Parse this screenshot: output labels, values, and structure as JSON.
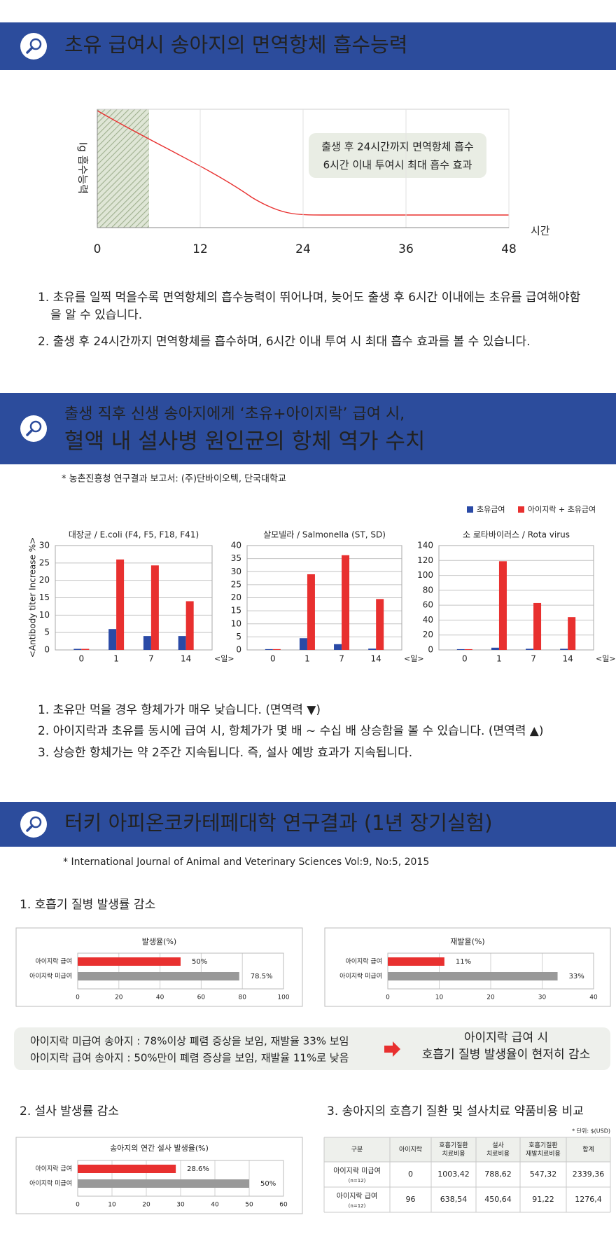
{
  "section1": {
    "title": "초유 급여시 송아지의 면역항체 흡수능력",
    "notes": [
      "1. 초유를 일찍 먹을수록 면역항체의 흡수능력이 뛰어나며, 늦어도 출생 후 6시간 이내에는 초유를 급여해야함을 알 수 있습니다.",
      "2. 출생 후 24시간까지 면역항체를 흡수하며, 6시간 이내  투여 시 최대 흡수 효과를 볼 수 있습니다."
    ]
  },
  "section2": {
    "title_lines": [
      "출생 직후 신생 송아지에게 ‘초유+아이지락’ 급여 시,",
      "혈액 내 설사병 원인균의 항체 역가 수치"
    ],
    "source": "* 농촌진흥청 연구결과 보고서: (주)단바이오텍, 단국대학교",
    "legend": [
      {
        "name": "초유급여",
        "color": "#2a4aa6"
      },
      {
        "name": "아이지락 + 초유급여",
        "color": "#e8302f"
      }
    ],
    "y_label": "<Antibody titer Increase %>",
    "x_unit": "<일>",
    "notes": [
      "1. 초유만 먹을 경우 항체가가 매우 낮습니다. (면역력 ▼)",
      "2. 아이지락과 초유를 동시에 급여 시, 항체가가 몇 배 ~ 수십 배 상승함을 볼 수 있습니다. (면역력 ▲)",
      "3. 상승한 항체가는 약 2주간 지속됩니다. 즉, 설사 예방 효과가 지속됩니다."
    ]
  },
  "section3": {
    "title": "터키 아피온코카테페대학 연구결과 (1년 장기실험)",
    "source": "* International Journal of Animal and Veterinary Sciences Vol:9, No:5, 2015",
    "heading1": "1. 호흡기 질병 발생률 감소",
    "summary_left": [
      "아이지락 미급여 송아지 : 78%이상 폐렴 증상을 보임, 재발율 33% 보임",
      "아이지락 급여 송아지 : 50%만이 폐렴 증상을 보임, 재발율 11%로 낮음"
    ],
    "summary_right": [
      "아이지락 급여 시",
      "호흡기 질병 발생율이 현저히 감소"
    ],
    "heading2": "2. 설사 발생률 감소",
    "heading3": "3. 송아지의 호흡기 질환 및 설사치료 약품비용 비교",
    "cost_table": {
      "unit": "* 단위: $(USD)",
      "header": [
        [
          "구분"
        ],
        [
          "아이지락"
        ],
        [
          "호흡기질환",
          "치료비용"
        ],
        [
          "설사",
          "치료비용"
        ],
        [
          "호흡기질환",
          "재발치료비용"
        ],
        [
          "합계"
        ]
      ],
      "rows": [
        [
          [
            "아이지락 미급여",
            "(n=12)"
          ],
          "0",
          "1003,42",
          "788,62",
          "547,32",
          "2339,36"
        ],
        [
          [
            "아이지락 급여",
            "(n=12)"
          ],
          "96",
          "638,54",
          "450,64",
          "91,22",
          "1276,4"
        ]
      ]
    }
  },
  "chart_data": [
    {
      "type": "line",
      "x_label": "시간",
      "y_label": "Ig 흡수능력",
      "xlim": [
        0,
        48
      ],
      "xticks": [
        0,
        12,
        24,
        36,
        48
      ],
      "annotation": [
        "출생 후 24시간까지 면역항체 흡수",
        "6시간 이내 투여시 최대 흡수 효과"
      ]
    },
    {
      "type": "bar",
      "title": "대장균 / E.coli (F4, F5, F18, F41)",
      "categories": [
        "0",
        "1",
        "7",
        "14"
      ],
      "ylim": [
        0,
        30
      ],
      "yticks": [
        0,
        5,
        10,
        15,
        20,
        25,
        30
      ],
      "series": [
        {
          "values": [
            0.3,
            6,
            4,
            4
          ]
        },
        {
          "values": [
            0.3,
            26,
            24.3,
            14
          ]
        }
      ]
    },
    {
      "type": "bar",
      "title": "살모넬라 / Salmonella (ST, SD)",
      "categories": [
        "0",
        "1",
        "7",
        "14"
      ],
      "ylim": [
        0,
        40
      ],
      "yticks": [
        0,
        5,
        10,
        15,
        20,
        25,
        30,
        35,
        40
      ],
      "series": [
        {
          "values": [
            0.3,
            4.5,
            2.2,
            0.5
          ]
        },
        {
          "values": [
            0.3,
            29,
            36.3,
            19.5
          ]
        }
      ]
    },
    {
      "type": "bar",
      "title": "소 로타바이러스 / Rota virus",
      "categories": [
        "0",
        "1",
        "7",
        "14"
      ],
      "ylim": [
        0,
        140
      ],
      "yticks": [
        0,
        20,
        40,
        60,
        80,
        100,
        120,
        140
      ],
      "series": [
        {
          "values": [
            1,
            3,
            1.5,
            1.5
          ]
        },
        {
          "values": [
            1,
            119,
            63,
            44
          ]
        }
      ]
    },
    {
      "type": "hbar",
      "title": "발생율(%)",
      "categories": [
        "아이지락 급여",
        "아이지락 미급여"
      ],
      "values": [
        50,
        78.5
      ],
      "value_labels": [
        "50%",
        "78.5%"
      ],
      "colors": [
        "#e8302f",
        "#999999"
      ],
      "xlim": [
        0,
        100
      ],
      "xticks": [
        0,
        20,
        40,
        60,
        80,
        100
      ]
    },
    {
      "type": "hbar",
      "title": "재발율(%)",
      "categories": [
        "아이지락 급여",
        "아이지락 미급여"
      ],
      "values": [
        11,
        33
      ],
      "value_labels": [
        "11%",
        "33%"
      ],
      "colors": [
        "#e8302f",
        "#999999"
      ],
      "xlim": [
        0,
        40
      ],
      "xticks": [
        0,
        10,
        20,
        30,
        40
      ]
    },
    {
      "type": "hbar",
      "title": "송아지의 연간 설사 발생율(%)",
      "categories": [
        "아이지락 급여",
        "아이지락 미급여"
      ],
      "values": [
        28.6,
        50
      ],
      "value_labels": [
        "28.6%",
        "50%"
      ],
      "colors": [
        "#e8302f",
        "#999999"
      ],
      "xlim": [
        0,
        60
      ],
      "xticks": [
        0,
        10,
        20,
        30,
        40,
        50,
        60
      ]
    }
  ]
}
